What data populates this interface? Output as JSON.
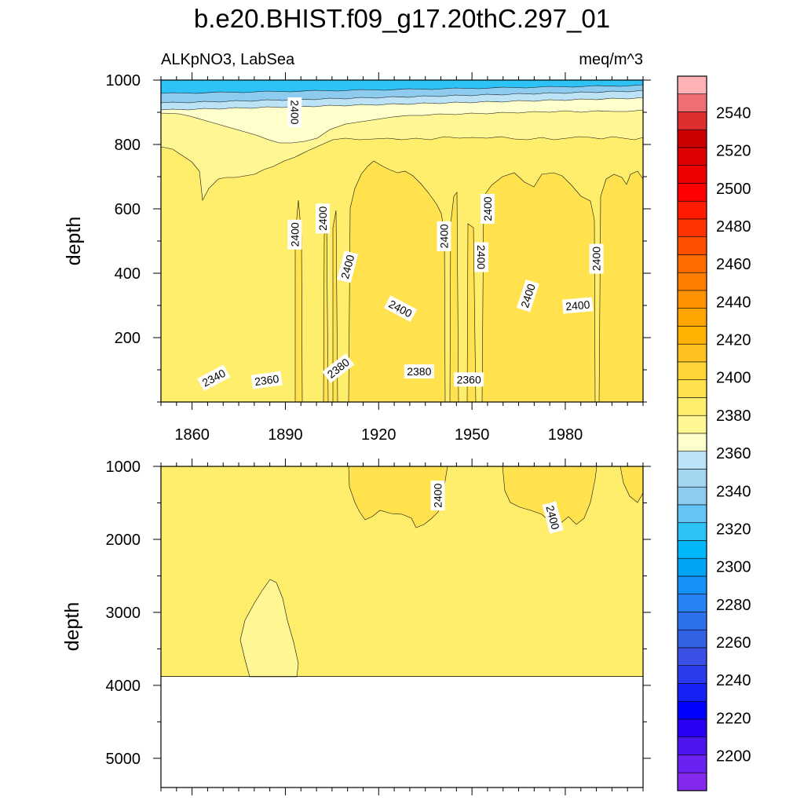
{
  "chart_data": {
    "type": "heatmap",
    "title": "b.e20.BHIST.f09_g17.20thC.297_01",
    "subtitle_left": "ALKpNO3, LabSea",
    "subtitle_right": "meq/m^3",
    "ylabel": "depth",
    "xlim": [
      1850,
      2005
    ],
    "x_ticks": [
      1860,
      1890,
      1920,
      1950,
      1980
    ],
    "x_tick_labels": [
      "1860",
      "1890",
      "1920",
      "1950",
      "1980"
    ],
    "panels": [
      {
        "name": "upper",
        "ylim": [
          1000,
          0
        ],
        "y_ticks": [
          200,
          400,
          600,
          800,
          1000
        ],
        "y_tick_labels": [
          "200",
          "400",
          "600",
          "800",
          "1000"
        ],
        "contour_labels": [
          {
            "text": "2340",
            "x": 1867,
            "y": 75,
            "angle": -28
          },
          {
            "text": "2360",
            "x": 1884,
            "y": 68,
            "angle": -8
          },
          {
            "text": "2380",
            "x": 1907,
            "y": 105,
            "angle": -38
          },
          {
            "text": "2380",
            "x": 1933,
            "y": 95,
            "angle": 0
          },
          {
            "text": "2360",
            "x": 1949,
            "y": 70,
            "angle": 0
          },
          {
            "text": "2400",
            "x": 1927,
            "y": 290,
            "angle": 28
          },
          {
            "text": "2400",
            "x": 1910,
            "y": 420,
            "angle": -75
          },
          {
            "text": "2400",
            "x": 1968,
            "y": 330,
            "angle": -72
          },
          {
            "text": "2400",
            "x": 1984,
            "y": 300,
            "angle": -5
          },
          {
            "text": "2400",
            "x": 1893,
            "y": 520,
            "angle": -90
          },
          {
            "text": "2400",
            "x": 1902,
            "y": 570,
            "angle": -90
          },
          {
            "text": "2400",
            "x": 1941,
            "y": 515,
            "angle": -90
          },
          {
            "text": "2400",
            "x": 1953,
            "y": 450,
            "angle": 90
          },
          {
            "text": "2400",
            "x": 1955,
            "y": 600,
            "angle": -90
          },
          {
            "text": "2400",
            "x": 1990,
            "y": 445,
            "angle": -90
          },
          {
            "text": "2400",
            "x": 1893,
            "y": 900,
            "angle": 90
          }
        ]
      },
      {
        "name": "lower",
        "ylim": [
          1000,
          5400
        ],
        "y_ticks": [
          1000,
          2000,
          3000,
          4000,
          5000
        ],
        "y_tick_labels": [
          "1000",
          "2000",
          "3000",
          "4000",
          "5000"
        ],
        "bottom_depth": 3870,
        "contour_labels": [
          {
            "text": "2400",
            "x": 1939,
            "y": 1400,
            "angle": -90
          },
          {
            "text": "2400",
            "x": 1976,
            "y": 1700,
            "angle": 75
          }
        ]
      }
    ],
    "colorbar": {
      "label_values": [
        2540,
        2520,
        2500,
        2480,
        2460,
        2440,
        2420,
        2400,
        2380,
        2360,
        2340,
        2320,
        2300,
        2280,
        2260,
        2240,
        2220,
        2200
      ],
      "label_texts": [
        "2540",
        "2520",
        "2500",
        "2480",
        "2460",
        "2440",
        "2420",
        "2400",
        "2380",
        "2360",
        "2340",
        "2320",
        "2300",
        "2280",
        "2260",
        "2240",
        "2220",
        "2200"
      ],
      "colors_top_to_bottom": [
        "#FFB3B6",
        "#EE6E72",
        "#DD2E30",
        "#CC0000",
        "#DD0000",
        "#EE0000",
        "#FF0000",
        "#FF1A00",
        "#FF3300",
        "#FF5000",
        "#FF6C00",
        "#FF7E00",
        "#FF9200",
        "#FFA500",
        "#FFB300",
        "#FFC21E",
        "#FFD638",
        "#FFE24D",
        "#FFEE6B",
        "#FFF694",
        "#FFFFCC",
        "#BBE3F5",
        "#A4D6F1",
        "#8DCBEF",
        "#63C4F5",
        "#2EC3F6",
        "#00B7FA",
        "#00A5F8",
        "#1592FA",
        "#2683F5",
        "#2B72EC",
        "#3362E4",
        "#3A4FE4",
        "#2B3BEE",
        "#1521F5",
        "#0000FF",
        "#2A00F3",
        "#4D14F0",
        "#6A21F2",
        "#8428EE"
      ]
    }
  }
}
